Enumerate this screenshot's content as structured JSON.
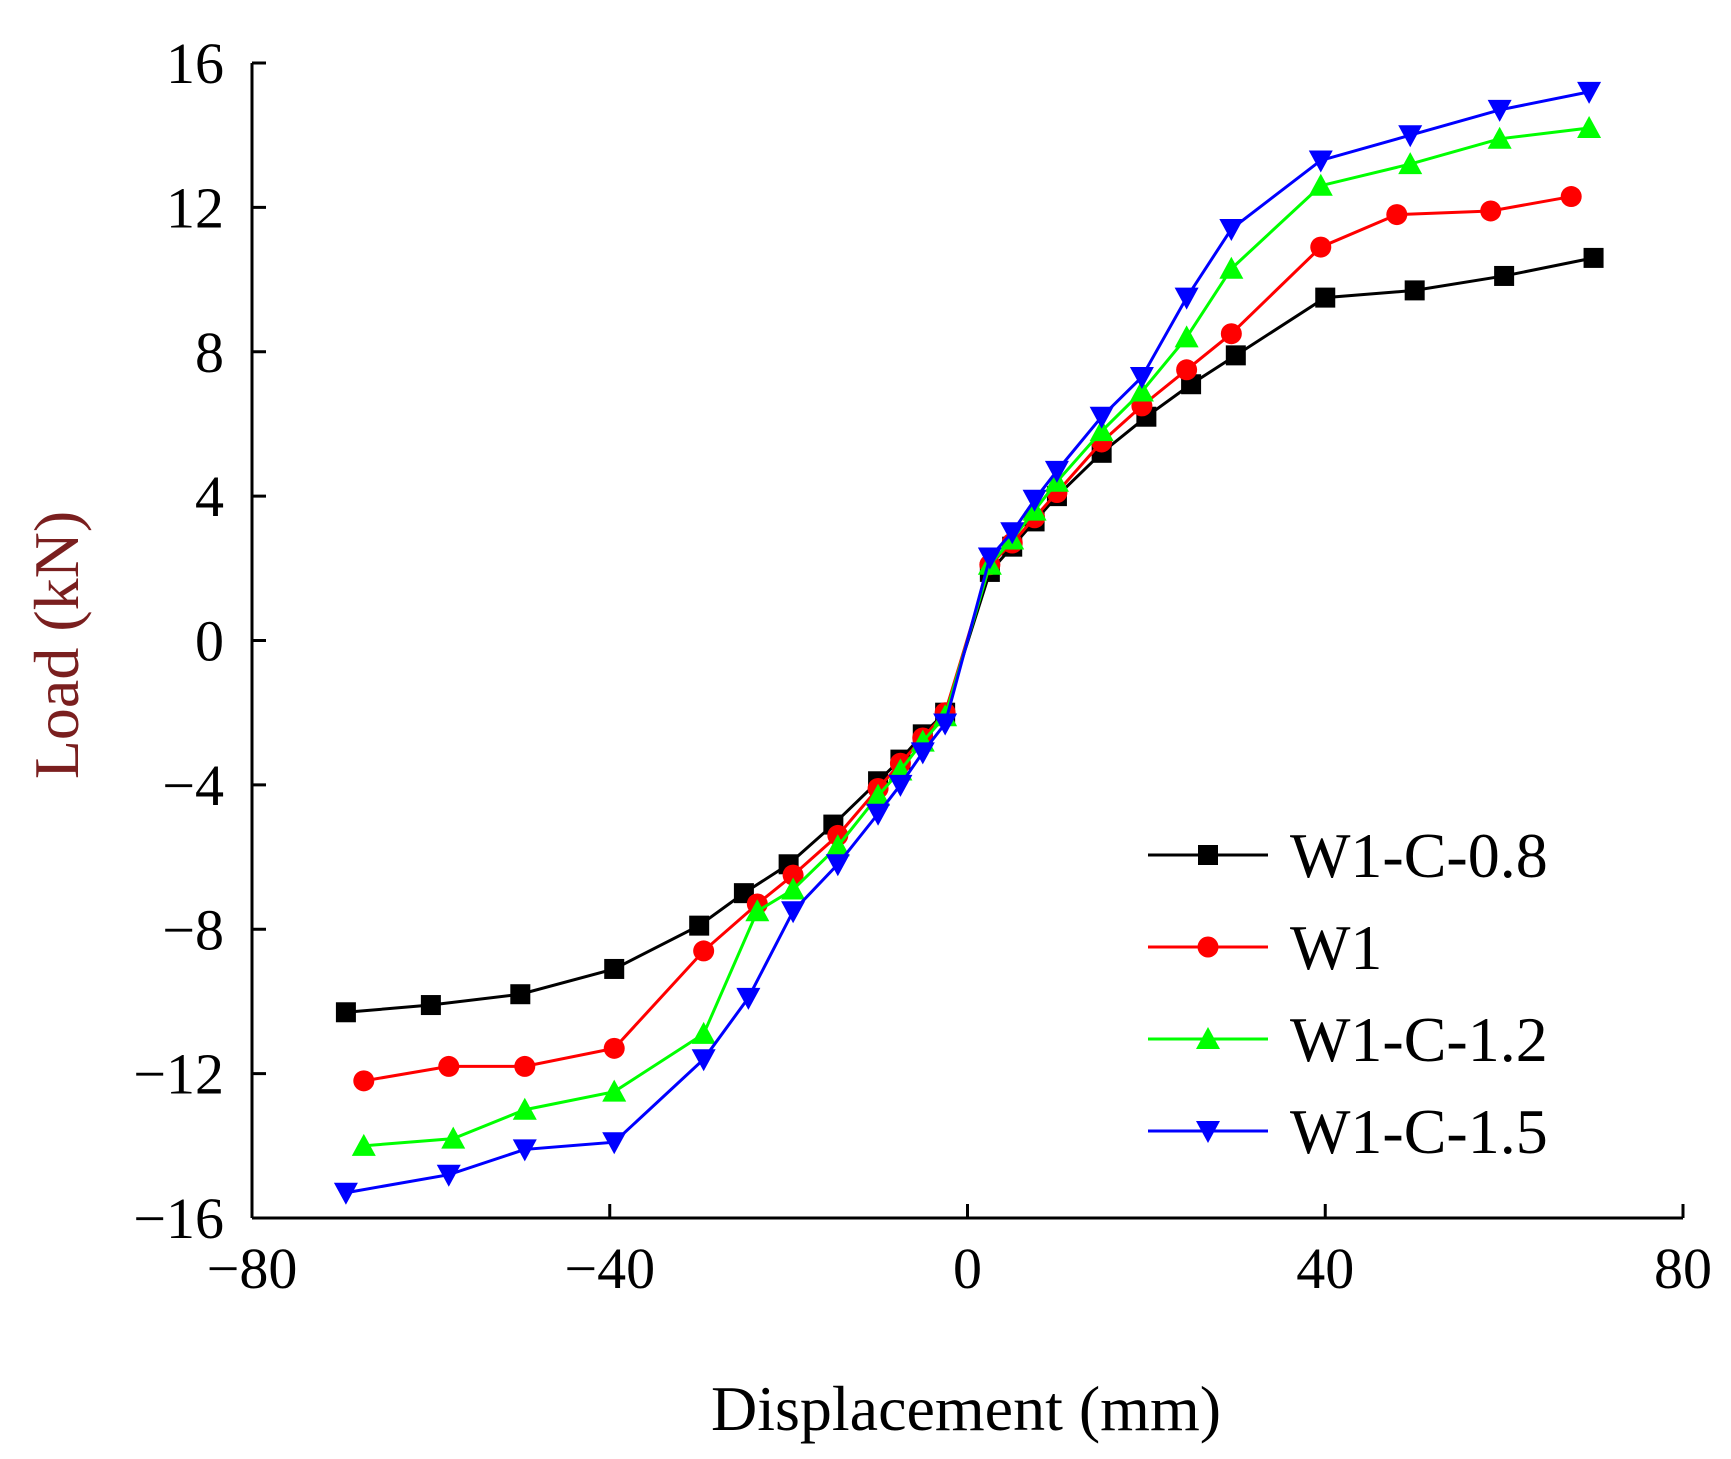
{
  "chart_data": {
    "type": "line",
    "title": "",
    "xlabel": "Displacement (mm)",
    "ylabel": "Load (kN)",
    "ylabel_color": "#7a1f1f",
    "xlim": [
      -80,
      80
    ],
    "ylim": [
      -16,
      16
    ],
    "xticks": [
      -80,
      -40,
      0,
      40,
      80
    ],
    "yticks": [
      -16,
      -12,
      -8,
      -4,
      0,
      4,
      8,
      12,
      16
    ],
    "grid": false,
    "legend": "lower-right",
    "series": [
      {
        "name": "W1-C-0.8",
        "color": "#000000",
        "marker": "square",
        "x": [
          -69.5,
          -60,
          -50,
          -39.5,
          -30,
          -25,
          -20,
          -15,
          -10,
          -7.5,
          -5,
          -2.5,
          2.5,
          5,
          7.5,
          10,
          15,
          20,
          25,
          30,
          40,
          50,
          60,
          70
        ],
        "y": [
          -10.3,
          -10.1,
          -9.8,
          -9.1,
          -7.9,
          -7.0,
          -6.2,
          -5.1,
          -3.9,
          -3.3,
          -2.6,
          -2.0,
          1.9,
          2.6,
          3.3,
          4.0,
          5.2,
          6.2,
          7.1,
          7.9,
          9.5,
          9.7,
          10.1,
          10.6
        ]
      },
      {
        "name": "W1",
        "color": "#ff0000",
        "marker": "circle",
        "x": [
          -67.5,
          -58,
          -49.5,
          -39.5,
          -29.5,
          -23.5,
          -19.5,
          -14.5,
          -10,
          -7.5,
          -5,
          -2.5,
          2.5,
          5,
          7.5,
          10,
          15,
          19.5,
          24.5,
          29.5,
          39.5,
          48,
          58.5,
          67.5
        ],
        "y": [
          -12.2,
          -11.8,
          -11.8,
          -11.3,
          -8.6,
          -7.3,
          -6.5,
          -5.4,
          -4.1,
          -3.4,
          -2.7,
          -2.0,
          2.1,
          2.7,
          3.4,
          4.1,
          5.5,
          6.5,
          7.5,
          8.5,
          10.9,
          11.8,
          11.9,
          12.3
        ]
      },
      {
        "name": "W1-C-1.2",
        "color": "#00ff00",
        "marker": "triangle-up",
        "x": [
          -67.5,
          -57.5,
          -49.5,
          -39.5,
          -29.5,
          -23.5,
          -19.5,
          -14.5,
          -10,
          -7.5,
          -5,
          -2.5,
          2.5,
          5,
          7.5,
          10,
          15,
          19.5,
          24.5,
          29.5,
          39.5,
          49.5,
          59.5,
          69.5
        ],
        "y": [
          -14.0,
          -13.8,
          -13.0,
          -12.5,
          -10.9,
          -7.5,
          -6.9,
          -5.7,
          -4.3,
          -3.6,
          -2.8,
          -2.1,
          2.1,
          2.8,
          3.6,
          4.4,
          5.8,
          6.9,
          8.4,
          10.3,
          12.6,
          13.2,
          13.9,
          14.2
        ]
      },
      {
        "name": "W1-C-1.5",
        "color": "#0000ff",
        "marker": "triangle-down",
        "x": [
          -69.5,
          -58,
          -49.5,
          -39.5,
          -29.5,
          -24.5,
          -19.5,
          -14.5,
          -10,
          -7.5,
          -5,
          -2.5,
          2.5,
          5,
          7.5,
          10,
          15,
          19.5,
          24.5,
          29.5,
          39.5,
          49.5,
          59.5,
          69.5
        ],
        "y": [
          -15.3,
          -14.8,
          -14.1,
          -13.9,
          -11.6,
          -9.9,
          -7.5,
          -6.2,
          -4.8,
          -4.0,
          -3.1,
          -2.3,
          2.3,
          3.0,
          3.9,
          4.7,
          6.2,
          7.3,
          9.5,
          11.4,
          13.3,
          14.0,
          14.7,
          15.2
        ]
      }
    ]
  }
}
